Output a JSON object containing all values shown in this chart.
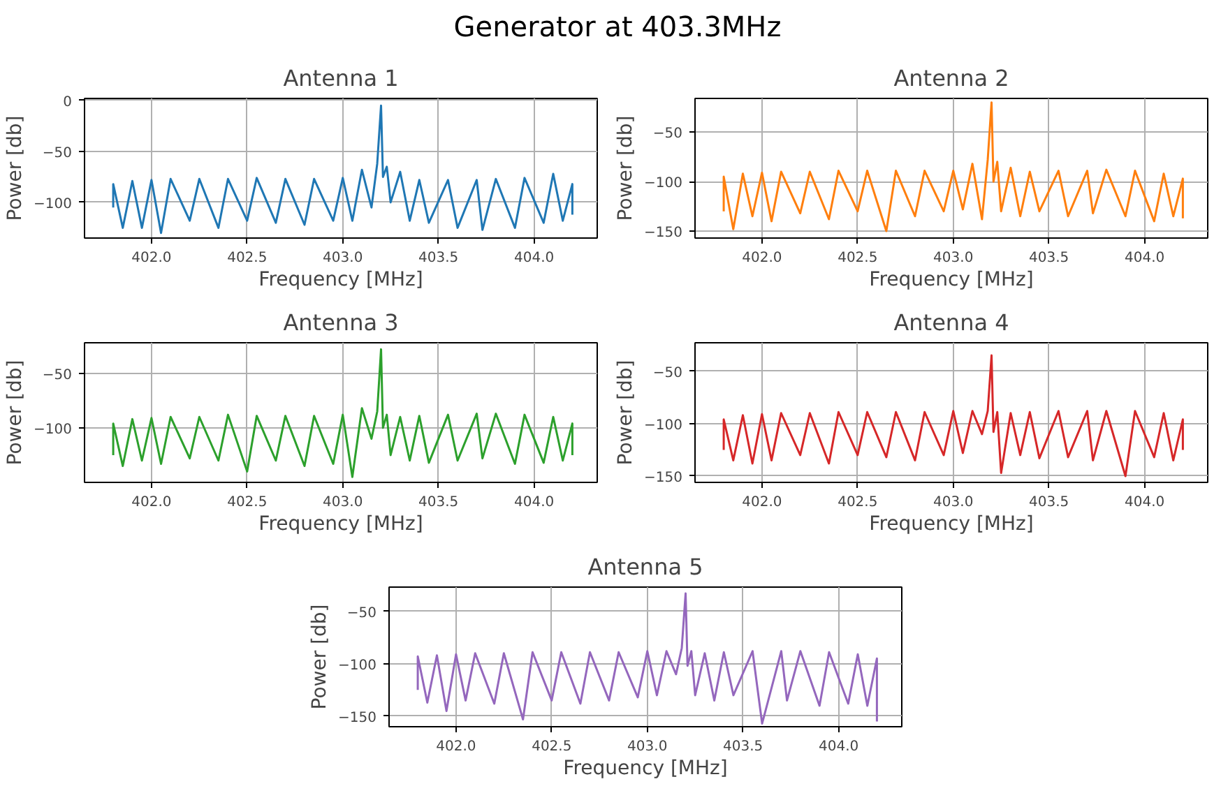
{
  "chart_data": [
    {
      "type": "line",
      "title": "Antenna 1",
      "annotations": [
        "Generator at 403.3MHz"
      ],
      "xlabel": "Frequency [MHz]",
      "ylabel": "Power [db]",
      "grid": true,
      "xlim": [
        401.65,
        404.33
      ],
      "ylim": [
        -135,
        2
      ],
      "xticks": [
        {
          "value": 402.0,
          "label": "402.0"
        },
        {
          "value": 402.5,
          "label": "402.5"
        },
        {
          "value": 403.0,
          "label": "403.0"
        },
        {
          "value": 403.5,
          "label": "403.5"
        },
        {
          "value": 404.0,
          "label": "404.0"
        }
      ],
      "yticks": [
        {
          "value": -100,
          "label": "−100"
        },
        {
          "value": -50,
          "label": "−50"
        },
        0
      ],
      "x": [
        401.8,
        401.8,
        401.85,
        401.9,
        401.95,
        402.0,
        402.05,
        402.1,
        402.2,
        402.25,
        402.35,
        402.4,
        402.5,
        402.55,
        402.65,
        402.7,
        402.8,
        402.85,
        402.95,
        403.0,
        403.05,
        403.1,
        403.15,
        403.18,
        403.2,
        403.21,
        403.23,
        403.25,
        403.3,
        403.35,
        403.4,
        403.45,
        403.55,
        403.6,
        403.7,
        403.73,
        403.8,
        403.9,
        403.95,
        404.05,
        404.1,
        404.15,
        404.2,
        404.2
      ],
      "series": [
        {
          "color": "#1f77b4",
          "values": [
            -105,
            -82,
            -125,
            -79,
            -125,
            -78,
            -130,
            -77,
            -118,
            -77,
            -125,
            -77,
            -118,
            -76,
            -120,
            -77,
            -122,
            -77,
            -118,
            -76,
            -118,
            -68,
            -105,
            -62,
            -5,
            -75,
            -65,
            -100,
            -70,
            -118,
            -78,
            -120,
            -78,
            -125,
            -78,
            -127,
            -77,
            -125,
            -76,
            -120,
            -72,
            -118,
            -82,
            -112
          ]
        }
      ]
    },
    {
      "type": "line",
      "title": "Antenna 2",
      "xlabel": "Frequency [MHz]",
      "ylabel": "Power [db]",
      "grid": true,
      "xlim": [
        401.65,
        404.33
      ],
      "ylim": [
        -157,
        -16
      ],
      "xticks": [
        {
          "value": 402.0,
          "label": "402.0"
        },
        {
          "value": 402.5,
          "label": "402.5"
        },
        {
          "value": 403.0,
          "label": "403.0"
        },
        {
          "value": 403.5,
          "label": "403.5"
        },
        {
          "value": 404.0,
          "label": "404.0"
        }
      ],
      "yticks": [
        {
          "value": -150,
          "label": "−150"
        },
        {
          "value": -100,
          "label": "−100"
        },
        {
          "value": -50,
          "label": "−50"
        }
      ],
      "x": [
        401.8,
        401.8,
        401.85,
        401.9,
        401.95,
        402.0,
        402.05,
        402.1,
        402.2,
        402.25,
        402.35,
        402.4,
        402.5,
        402.55,
        402.65,
        402.7,
        402.8,
        402.85,
        402.95,
        403.0,
        403.05,
        403.1,
        403.15,
        403.18,
        403.2,
        403.21,
        403.23,
        403.25,
        403.3,
        403.35,
        403.4,
        403.45,
        403.55,
        403.6,
        403.7,
        403.73,
        403.8,
        403.9,
        403.95,
        404.05,
        404.1,
        404.15,
        404.2,
        404.2
      ],
      "series": [
        {
          "color": "#ff7f0e",
          "values": [
            -130,
            -95,
            -148,
            -92,
            -135,
            -91,
            -140,
            -90,
            -132,
            -90,
            -138,
            -89,
            -130,
            -89,
            -150,
            -89,
            -135,
            -89,
            -130,
            -89,
            -128,
            -82,
            -138,
            -78,
            -20,
            -100,
            -80,
            -130,
            -86,
            -135,
            -90,
            -130,
            -89,
            -135,
            -89,
            -132,
            -88,
            -135,
            -89,
            -140,
            -92,
            -135,
            -97,
            -137
          ]
        }
      ]
    },
    {
      "type": "line",
      "title": "Antenna 3",
      "xlabel": "Frequency [MHz]",
      "ylabel": "Power [db]",
      "grid": true,
      "xlim": [
        401.65,
        404.33
      ],
      "ylim": [
        -150,
        -22
      ],
      "xticks": [
        {
          "value": 402.0,
          "label": "402.0"
        },
        {
          "value": 402.5,
          "label": "402.5"
        },
        {
          "value": 403.0,
          "label": "403.0"
        },
        {
          "value": 403.5,
          "label": "403.5"
        },
        {
          "value": 404.0,
          "label": "404.0"
        }
      ],
      "yticks": [
        {
          "value": -100,
          "label": "−100"
        },
        {
          "value": -50,
          "label": "−50"
        }
      ],
      "x": [
        401.8,
        401.8,
        401.85,
        401.9,
        401.95,
        402.0,
        402.05,
        402.1,
        402.2,
        402.25,
        402.35,
        402.4,
        402.5,
        402.55,
        402.65,
        402.7,
        402.8,
        402.85,
        402.95,
        403.0,
        403.05,
        403.1,
        403.15,
        403.18,
        403.2,
        403.21,
        403.23,
        403.25,
        403.3,
        403.35,
        403.4,
        403.45,
        403.55,
        403.6,
        403.7,
        403.73,
        403.8,
        403.9,
        403.95,
        404.05,
        404.1,
        404.15,
        404.2,
        404.2
      ],
      "series": [
        {
          "color": "#2ca02c",
          "values": [
            -125,
            -96,
            -135,
            -92,
            -130,
            -91,
            -133,
            -90,
            -128,
            -90,
            -130,
            -88,
            -140,
            -89,
            -130,
            -89,
            -135,
            -89,
            -133,
            -88,
            -145,
            -82,
            -110,
            -85,
            -28,
            -100,
            -88,
            -125,
            -90,
            -130,
            -89,
            -132,
            -88,
            -130,
            -87,
            -128,
            -87,
            -133,
            -88,
            -132,
            -90,
            -130,
            -96,
            -125
          ]
        }
      ]
    },
    {
      "type": "line",
      "title": "Antenna 4",
      "xlabel": "Frequency [MHz]",
      "ylabel": "Power [db]",
      "grid": true,
      "xlim": [
        401.65,
        404.33
      ],
      "ylim": [
        -156,
        -23
      ],
      "xticks": [
        {
          "value": 402.0,
          "label": "402.0"
        },
        {
          "value": 402.5,
          "label": "402.5"
        },
        {
          "value": 403.0,
          "label": "403.0"
        },
        {
          "value": 403.5,
          "label": "403.5"
        },
        {
          "value": 404.0,
          "label": "404.0"
        }
      ],
      "yticks": [
        {
          "value": -150,
          "label": "−150"
        },
        {
          "value": -100,
          "label": "−100"
        },
        {
          "value": -50,
          "label": "−50"
        }
      ],
      "x": [
        401.8,
        401.8,
        401.85,
        401.9,
        401.95,
        402.0,
        402.05,
        402.1,
        402.2,
        402.25,
        402.35,
        402.4,
        402.5,
        402.55,
        402.65,
        402.7,
        402.8,
        402.85,
        402.95,
        403.0,
        403.05,
        403.1,
        403.15,
        403.18,
        403.2,
        403.21,
        403.23,
        403.25,
        403.3,
        403.35,
        403.4,
        403.45,
        403.55,
        403.6,
        403.7,
        403.73,
        403.8,
        403.9,
        403.95,
        404.05,
        404.1,
        404.15,
        404.2,
        404.2
      ],
      "series": [
        {
          "color": "#d62728",
          "values": [
            -125,
            -96,
            -135,
            -92,
            -138,
            -91,
            -135,
            -90,
            -130,
            -90,
            -138,
            -89,
            -130,
            -89,
            -132,
            -89,
            -135,
            -89,
            -130,
            -88,
            -128,
            -88,
            -110,
            -88,
            -35,
            -108,
            -89,
            -147,
            -90,
            -130,
            -89,
            -133,
            -88,
            -132,
            -88,
            -135,
            -88,
            -150,
            -88,
            -132,
            -90,
            -135,
            -96,
            -125
          ]
        }
      ]
    },
    {
      "type": "line",
      "title": "Antenna 5",
      "xlabel": "Frequency [MHz]",
      "ylabel": "Power [db]",
      "grid": true,
      "xlim": [
        401.65,
        404.33
      ],
      "ylim": [
        -160,
        -27
      ],
      "xticks": [
        {
          "value": 402.0,
          "label": "402.0"
        },
        {
          "value": 402.5,
          "label": "402.5"
        },
        {
          "value": 403.0,
          "label": "403.0"
        },
        {
          "value": 403.5,
          "label": "403.5"
        },
        {
          "value": 404.0,
          "label": "404.0"
        }
      ],
      "yticks": [
        {
          "value": -150,
          "label": "−150"
        },
        {
          "value": -100,
          "label": "−100"
        },
        {
          "value": -50,
          "label": "−50"
        }
      ],
      "x": [
        401.8,
        401.8,
        401.85,
        401.9,
        401.95,
        402.0,
        402.05,
        402.1,
        402.2,
        402.25,
        402.35,
        402.4,
        402.5,
        402.55,
        402.65,
        402.7,
        402.8,
        402.85,
        402.95,
        403.0,
        403.05,
        403.1,
        403.15,
        403.18,
        403.2,
        403.21,
        403.23,
        403.25,
        403.3,
        403.35,
        403.4,
        403.45,
        403.55,
        403.6,
        403.7,
        403.73,
        403.8,
        403.9,
        403.95,
        404.05,
        404.1,
        404.15,
        404.2,
        404.2
      ],
      "series": [
        {
          "color": "#9467bd",
          "values": [
            -125,
            -93,
            -137,
            -92,
            -145,
            -91,
            -135,
            -90,
            -138,
            -90,
            -153,
            -89,
            -135,
            -89,
            -138,
            -89,
            -135,
            -89,
            -132,
            -88,
            -130,
            -88,
            -110,
            -85,
            -33,
            -102,
            -88,
            -130,
            -90,
            -135,
            -89,
            -130,
            -88,
            -157,
            -88,
            -135,
            -88,
            -140,
            -89,
            -138,
            -91,
            -140,
            -95,
            -155
          ]
        }
      ]
    }
  ]
}
